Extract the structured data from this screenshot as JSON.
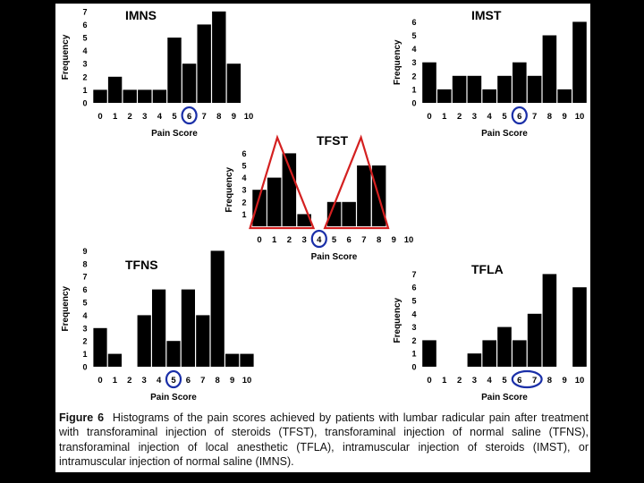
{
  "chart_data": [
    {
      "type": "bar",
      "title": "IMNS",
      "xlabel": "Pain Score",
      "ylabel": "Frequency",
      "categories": [
        "0",
        "1",
        "2",
        "3",
        "4",
        "5",
        "6",
        "7",
        "8",
        "9",
        "10"
      ],
      "values": [
        1,
        2,
        1,
        1,
        1,
        5,
        3,
        6,
        7,
        3,
        0
      ],
      "ylim": [
        0,
        7
      ],
      "yticks": [
        "0",
        "1",
        "2",
        "3",
        "4",
        "5",
        "6",
        "7"
      ],
      "highlight": [
        "6"
      ]
    },
    {
      "type": "bar",
      "title": "IMST",
      "xlabel": "Pain Score",
      "ylabel": "Frequency",
      "categories": [
        "0",
        "1",
        "2",
        "3",
        "4",
        "5",
        "6",
        "7",
        "8",
        "9",
        "10"
      ],
      "values": [
        3,
        1,
        2,
        2,
        1,
        2,
        3,
        2,
        5,
        1,
        6
      ],
      "ylim": [
        0,
        6
      ],
      "yticks": [
        "0",
        "1",
        "2",
        "3",
        "4",
        "5",
        "6"
      ],
      "highlight": [
        "6"
      ]
    },
    {
      "type": "bar",
      "title": "TFST",
      "xlabel": "Pain Score",
      "ylabel": "Frequency",
      "categories": [
        "0",
        "1",
        "2",
        "3",
        "4",
        "5",
        "6",
        "7",
        "8",
        "9",
        "10"
      ],
      "values": [
        3,
        4,
        6,
        1,
        0,
        2,
        2,
        5,
        5,
        0,
        0
      ],
      "ylim": [
        0,
        6
      ],
      "yticks": [
        "1",
        "2",
        "3",
        "4",
        "5",
        "6"
      ],
      "highlight": [
        "4"
      ]
    },
    {
      "type": "bar",
      "title": "TFNS",
      "xlabel": "Pain Score",
      "ylabel": "Frequency",
      "categories": [
        "0",
        "1",
        "2",
        "3",
        "4",
        "5",
        "6",
        "7",
        "8",
        "9",
        "10"
      ],
      "values": [
        3,
        1,
        0,
        4,
        6,
        2,
        6,
        4,
        9,
        1,
        1
      ],
      "ylim": [
        0,
        9
      ],
      "yticks": [
        "0",
        "1",
        "2",
        "3",
        "4",
        "5",
        "6",
        "7",
        "8",
        "9"
      ],
      "highlight": [
        "5"
      ]
    },
    {
      "type": "bar",
      "title": "TFLA",
      "xlabel": "Pain Score",
      "ylabel": "Frequency",
      "categories": [
        "0",
        "1",
        "2",
        "3",
        "4",
        "5",
        "6",
        "7",
        "8",
        "9",
        "10"
      ],
      "values": [
        2,
        0,
        0,
        1,
        2,
        3,
        2,
        4,
        7,
        0,
        6
      ],
      "ylim": [
        0,
        7
      ],
      "yticks": [
        "0",
        "1",
        "2",
        "3",
        "4",
        "5",
        "6",
        "7"
      ],
      "highlight": [
        "6",
        "7"
      ]
    }
  ],
  "caption": {
    "label": "Figure 6",
    "text": "Histograms of the pain scores achieved by patients with lumbar radicular pain after treatment with transforaminal injection of steroids (TFST), transforaminal injection of normal saline (TFNS), transforaminal injection of local anesthetic (TFLA), intramuscular injection of steroids (IMST), or intramuscular injection of normal saline (IMNS)."
  },
  "colors": {
    "bar": "#000000",
    "highlight_circle": "#1a2fa8",
    "triangle": "#d42020",
    "background": "#000000",
    "panel": "#ffffff"
  }
}
